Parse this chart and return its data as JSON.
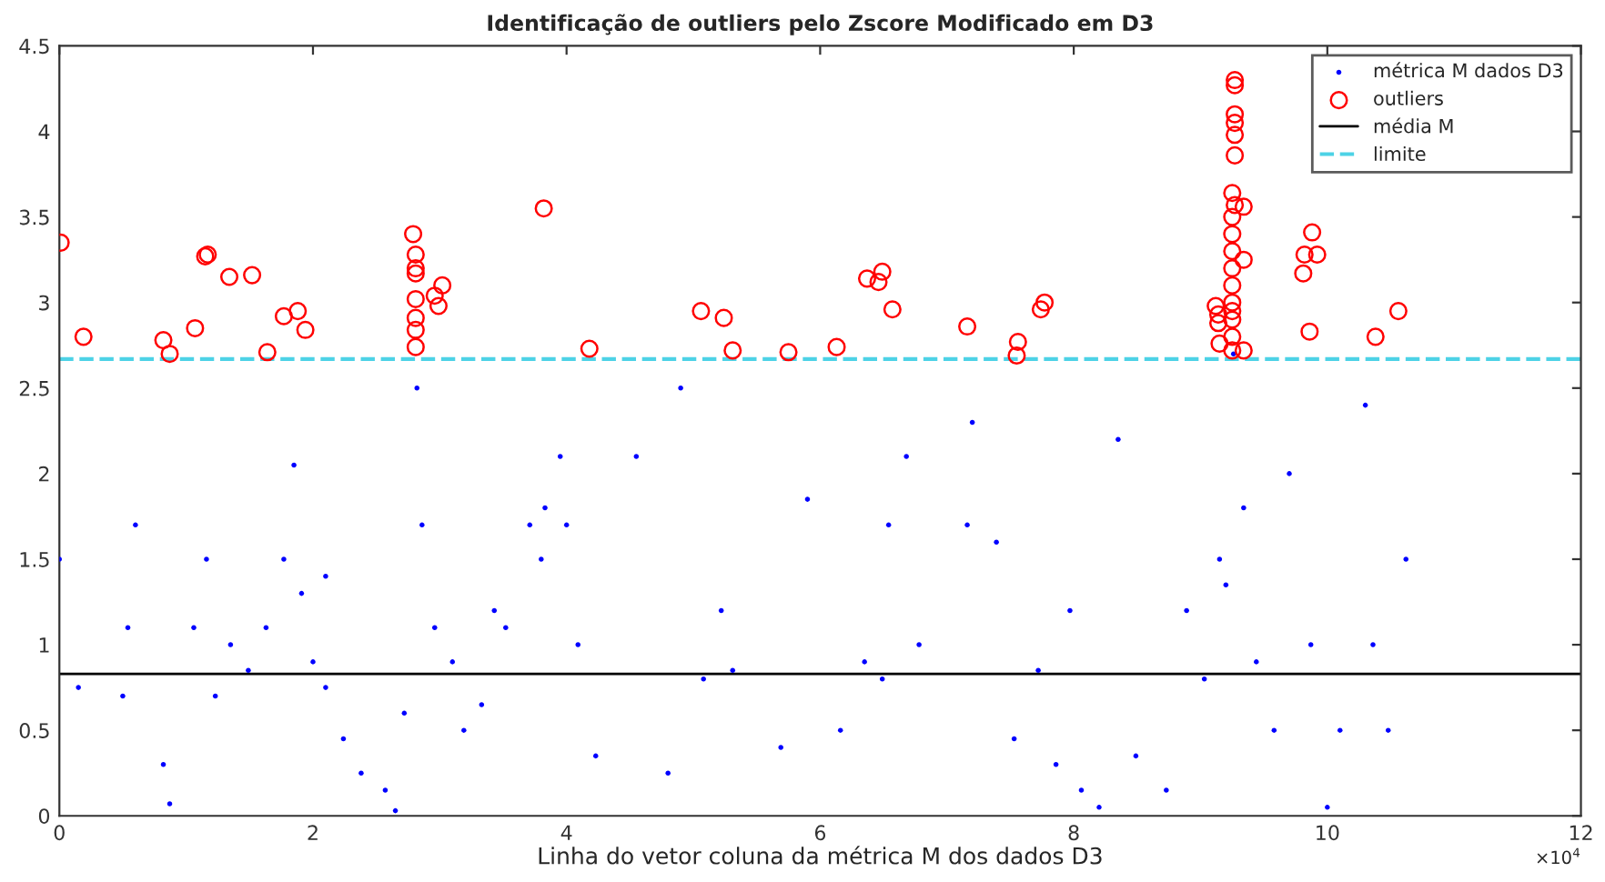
{
  "chart_data": {
    "type": "scatter",
    "title": "Identificação de outliers pelo Zscore Modificado em D3",
    "xlabel": "Linha do vetor coluna da métrica M dos dados D3",
    "xlim": [
      0,
      12
    ],
    "xticks": [
      0,
      2,
      4,
      6,
      8,
      10,
      12
    ],
    "ylim": [
      0,
      4.5
    ],
    "yticks": [
      0,
      0.5,
      1,
      1.5,
      2,
      2.5,
      3,
      3.5,
      4,
      4.5
    ],
    "grid": false,
    "legend": "top right",
    "annotations": [
      "×10$^{4}$"
    ],
    "series": [
      {
        "name": "métrica M dados D3",
        "marker": "circle",
        "color": "#0000ff",
        "x": [
          0,
          0.15,
          0.5,
          0.54,
          0.82,
          0.87,
          1.06,
          1.16,
          1.23,
          1.35,
          1.49,
          1.63,
          1.77,
          1.91,
          2.0,
          2.1,
          2.1,
          2.24,
          2.38,
          2.57,
          2.65,
          2.72,
          2.82,
          2.86,
          2.96,
          3.1,
          3.19,
          3.33,
          3.43,
          3.52,
          3.71,
          3.8,
          3.95,
          4.0,
          4.09,
          4.23,
          4.8,
          5.08,
          5.22,
          5.31,
          5.69,
          6.16,
          6.35,
          6.49,
          6.54,
          6.68,
          6.78,
          7.16,
          7.39,
          7.53,
          7.72,
          7.86,
          7.97,
          8.06,
          8.2,
          8.49,
          8.73,
          8.89,
          9.03,
          9.15,
          9.2,
          9.26,
          9.34,
          9.44,
          9.58,
          9.87,
          10.0,
          10.1,
          10.36,
          10.48,
          10.62,
          0.6,
          1.85,
          3.83,
          4.55,
          4.9,
          5.9,
          7.2,
          8.35,
          9.7,
          10.3
        ],
        "values": [
          1.5,
          0.75,
          0.7,
          1.1,
          0.3,
          0.07,
          1.1,
          1.5,
          0.7,
          1.0,
          0.85,
          1.1,
          1.5,
          1.3,
          0.9,
          1.4,
          0.75,
          0.45,
          0.25,
          0.15,
          0.03,
          0.6,
          2.5,
          1.7,
          1.1,
          0.9,
          0.5,
          0.65,
          1.2,
          1.1,
          1.7,
          1.5,
          2.1,
          1.7,
          1.0,
          0.35,
          0.25,
          0.8,
          1.2,
          0.85,
          0.4,
          0.5,
          0.9,
          0.8,
          1.7,
          2.1,
          1.0,
          1.7,
          1.6,
          0.45,
          0.85,
          0.3,
          1.2,
          0.15,
          0.05,
          0.35,
          0.15,
          1.2,
          0.8,
          1.5,
          1.35,
          2.7,
          1.8,
          0.9,
          0.5,
          1.0,
          0.05,
          0.5,
          1.0,
          0.5,
          1.5,
          1.7,
          2.05,
          1.8,
          2.1,
          2.5,
          1.85,
          2.3,
          2.2,
          2.0,
          2.4
        ]
      },
      {
        "name": "outliers",
        "marker": "circle",
        "color": "#ff0000",
        "x": [
          0.01,
          0.19,
          0.82,
          0.87,
          1.07,
          1.15,
          1.17,
          1.34,
          1.52,
          1.64,
          1.77,
          1.88,
          1.94,
          2.79,
          2.81,
          2.81,
          2.81,
          2.81,
          2.81,
          2.81,
          2.81,
          2.96,
          2.99,
          3.02,
          3.82,
          4.18,
          5.06,
          5.24,
          5.31,
          5.75,
          6.13,
          6.37,
          6.46,
          6.49,
          6.57,
          7.16,
          7.56,
          7.55,
          7.74,
          7.77,
          9.27,
          9.27,
          9.27,
          9.27,
          9.27,
          9.27,
          9.25,
          9.27,
          9.34,
          9.25,
          9.25,
          9.25,
          9.25,
          9.25,
          9.25,
          9.25,
          9.25,
          9.25,
          9.25,
          9.12,
          9.14,
          9.14,
          9.15,
          9.34,
          9.34,
          9.88,
          9.82,
          9.92,
          9.81,
          9.86,
          10.38,
          10.56
        ],
        "values": [
          3.35,
          2.8,
          2.78,
          2.7,
          2.85,
          3.27,
          3.28,
          3.15,
          3.16,
          2.71,
          2.92,
          2.95,
          2.84,
          3.4,
          3.28,
          3.2,
          3.17,
          3.02,
          2.91,
          2.84,
          2.74,
          3.04,
          2.98,
          3.1,
          3.55,
          2.73,
          2.95,
          2.91,
          2.72,
          2.71,
          2.74,
          3.14,
          3.12,
          3.18,
          2.96,
          2.86,
          2.77,
          2.69,
          2.96,
          3.0,
          4.3,
          4.27,
          4.1,
          4.05,
          3.98,
          3.86,
          3.64,
          3.57,
          3.56,
          3.5,
          3.4,
          3.3,
          3.2,
          3.1,
          3.0,
          2.95,
          2.9,
          2.8,
          2.72,
          2.98,
          2.93,
          2.88,
          2.76,
          2.72,
          3.25,
          3.41,
          3.28,
          3.28,
          3.17,
          2.83,
          2.8,
          2.95
        ]
      },
      {
        "name": "média M",
        "type": "line",
        "marker": "none",
        "line_style": "solid",
        "color": "#000000",
        "x": [
          0,
          12
        ],
        "values": [
          0.83,
          0.83
        ]
      },
      {
        "name": "limite",
        "type": "line",
        "marker": "none",
        "line_style": "dashed",
        "color": "#4dd2e6",
        "x": [
          0,
          12
        ],
        "values": [
          2.67,
          2.67
        ]
      }
    ]
  }
}
